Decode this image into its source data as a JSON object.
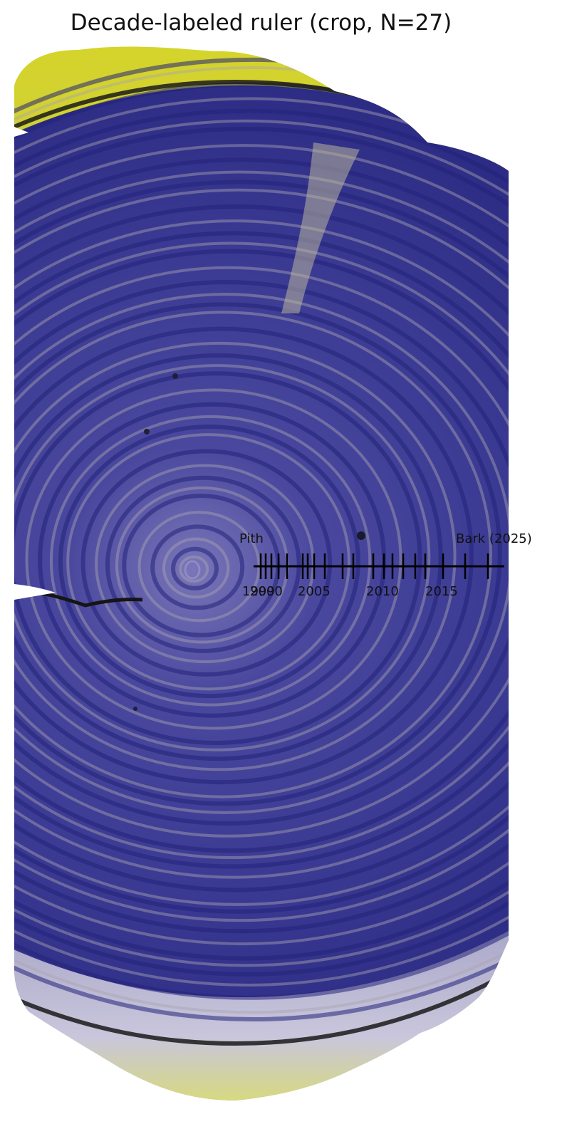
{
  "figure": {
    "title": "Decade-labeled ruler (crop, N=27)"
  },
  "image": {
    "subject": "tree-ring cross-section",
    "colors": {
      "wood": "#3b3b92",
      "wood_dark": "#23237a",
      "ring_light": "#a9a3b0",
      "bark": "#c9cc2a",
      "bark_edge": "#6f7a3a",
      "outer_band": "#c5c1d4"
    }
  },
  "ruler": {
    "start_label": "Pith",
    "end_label": "Bark (2025)",
    "ring_count": 27,
    "years": [
      1999,
      2000,
      2001,
      2002,
      2003,
      2004,
      2005,
      2006,
      2007,
      2008,
      2009,
      2010,
      2011,
      2012,
      2013,
      2014,
      2015,
      2016,
      2017,
      2018,
      2019,
      2020,
      2021,
      2022,
      2023,
      2024,
      2025
    ],
    "tick_labels": [
      "1999",
      "2000",
      "2005",
      "2010",
      "2015"
    ],
    "color": "#000000"
  }
}
